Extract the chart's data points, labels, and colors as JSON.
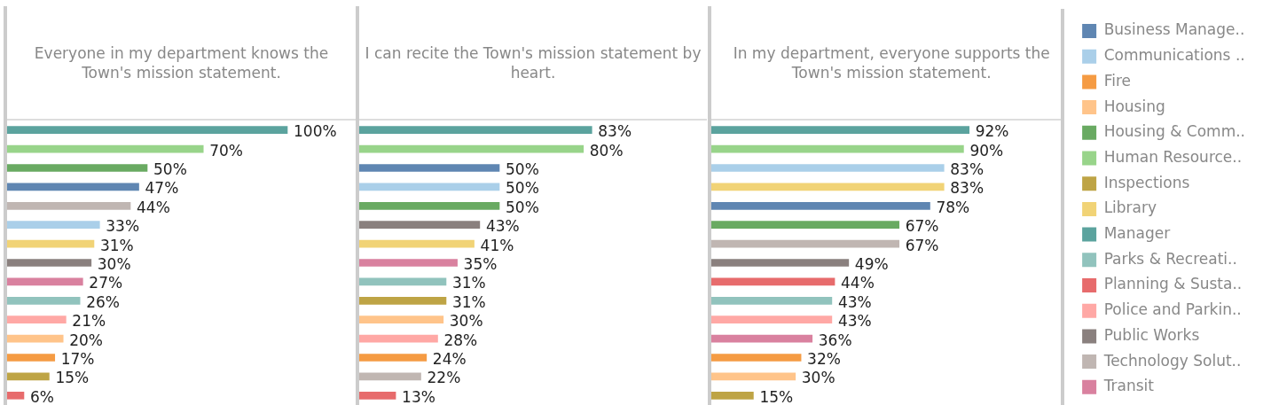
{
  "chart_data": [
    {
      "type": "bar",
      "orientation": "horizontal",
      "title": "Everyone in my department knows the Town's mission statement.",
      "tick_labels": false,
      "categories": [
        null,
        null,
        null,
        null,
        null,
        null,
        null,
        null,
        null,
        null,
        null,
        null,
        null,
        null,
        null
      ],
      "values": [
        100,
        70,
        50,
        47,
        44,
        33,
        31,
        30,
        27,
        26,
        21,
        20,
        17,
        15,
        6
      ],
      "colors": [
        "#5ba39e",
        "#98d48a",
        "#69aa62",
        "#5f86b2",
        "#c0b6b2",
        "#aacfe9",
        "#f1d376",
        "#8a807e",
        "#d9819f",
        "#91c3bd",
        "#ffa8a5",
        "#ffc48a",
        "#f59b43",
        "#bea445",
        "#e76b6c"
      ],
      "value_labels": [
        "100%",
        "70%",
        "50%",
        "47%",
        "44%",
        "33%",
        "31%",
        "30%",
        "27%",
        "26%",
        "21%",
        "20%",
        "17%",
        "15%",
        "6%"
      ]
    },
    {
      "type": "bar",
      "orientation": "horizontal",
      "title": "I can recite the Town's mission statement by heart.",
      "tick_labels": false,
      "categories": [
        null,
        null,
        null,
        null,
        null,
        null,
        null,
        null,
        null,
        null,
        null,
        null,
        null,
        null,
        null
      ],
      "values": [
        83,
        80,
        50,
        50,
        50,
        43,
        41,
        35,
        31,
        31,
        30,
        28,
        24,
        22,
        13
      ],
      "colors": [
        "#5ba39e",
        "#98d48a",
        "#5f86b2",
        "#aacfe9",
        "#69aa62",
        "#8a807e",
        "#f1d376",
        "#d9819f",
        "#91c3bd",
        "#bea445",
        "#ffc48a",
        "#ffa8a5",
        "#f59b43",
        "#c0b6b2",
        "#e76b6c"
      ],
      "value_labels": [
        "83%",
        "80%",
        "50%",
        "50%",
        "50%",
        "43%",
        "41%",
        "35%",
        "31%",
        "31%",
        "30%",
        "28%",
        "24%",
        "22%",
        "13%"
      ]
    },
    {
      "type": "bar",
      "orientation": "horizontal",
      "stacked": true,
      "legend": "right",
      "title": "In my department, everyone supports the Town's mission statement.",
      "tick_labels": false,
      "categories": [
        null,
        null,
        null,
        null,
        null,
        null,
        null,
        null,
        null,
        null,
        null,
        null,
        null,
        null,
        null
      ],
      "series": [
        {
          "name": "Business Manage..",
          "color": "#5f86b2",
          "values": [
            null,
            null,
            null,
            null,
            78,
            null,
            null,
            null,
            null,
            null,
            null,
            null,
            null,
            null,
            null
          ],
          "value_labels": [
            null,
            null,
            null,
            null,
            "78%",
            null,
            null,
            null,
            null,
            null,
            null,
            null,
            null,
            null,
            null
          ]
        },
        {
          "name": "Communications ..",
          "color": "#aacfe9",
          "values": [
            null,
            null,
            83,
            null,
            null,
            null,
            null,
            null,
            null,
            null,
            null,
            null,
            null,
            null,
            null
          ],
          "value_labels": [
            null,
            null,
            "83%",
            null,
            null,
            null,
            null,
            null,
            null,
            null,
            null,
            null,
            null,
            null,
            null
          ]
        },
        {
          "name": "Fire",
          "color": "#f59b43",
          "values": [
            null,
            null,
            null,
            null,
            null,
            null,
            null,
            null,
            null,
            null,
            null,
            null,
            32,
            null,
            null
          ],
          "value_labels": [
            null,
            null,
            null,
            null,
            null,
            null,
            null,
            null,
            null,
            null,
            null,
            null,
            "32%",
            null,
            null
          ]
        },
        {
          "name": "Housing",
          "color": "#ffc48a",
          "values": [
            null,
            null,
            null,
            null,
            null,
            null,
            null,
            null,
            null,
            null,
            null,
            null,
            null,
            30,
            null
          ],
          "value_labels": [
            null,
            null,
            null,
            null,
            null,
            null,
            null,
            null,
            null,
            null,
            null,
            null,
            null,
            "30%",
            null
          ]
        },
        {
          "name": "Housing & Comm..",
          "color": "#69aa62",
          "values": [
            null,
            null,
            null,
            null,
            null,
            67,
            null,
            null,
            null,
            null,
            null,
            null,
            null,
            null,
            null
          ],
          "value_labels": [
            null,
            null,
            null,
            null,
            null,
            "67%",
            null,
            null,
            null,
            null,
            null,
            null,
            null,
            null,
            null
          ]
        },
        {
          "name": "Human Resource..",
          "color": "#98d48a",
          "values": [
            null,
            90,
            null,
            null,
            null,
            null,
            null,
            null,
            null,
            null,
            null,
            null,
            null,
            null,
            null
          ],
          "value_labels": [
            null,
            "90%",
            null,
            null,
            null,
            null,
            null,
            null,
            null,
            null,
            null,
            null,
            null,
            null,
            null
          ]
        },
        {
          "name": "Inspections",
          "color": "#bea445",
          "values": [
            null,
            null,
            null,
            null,
            null,
            null,
            null,
            null,
            null,
            null,
            null,
            null,
            null,
            null,
            15
          ],
          "value_labels": [
            null,
            null,
            null,
            null,
            null,
            null,
            null,
            null,
            null,
            null,
            null,
            null,
            null,
            null,
            "15%"
          ]
        },
        {
          "name": "Library",
          "color": "#f1d376",
          "values": [
            null,
            null,
            null,
            83,
            null,
            null,
            null,
            null,
            null,
            null,
            null,
            null,
            null,
            null,
            null
          ],
          "value_labels": [
            null,
            null,
            null,
            "83%",
            null,
            null,
            null,
            null,
            null,
            null,
            null,
            null,
            null,
            null,
            null
          ]
        },
        {
          "name": "Manager",
          "color": "#5ba39e",
          "values": [
            92,
            null,
            null,
            null,
            null,
            null,
            null,
            null,
            null,
            null,
            null,
            null,
            null,
            null,
            null
          ],
          "value_labels": [
            "92%",
            null,
            null,
            null,
            null,
            null,
            null,
            null,
            null,
            null,
            null,
            null,
            null,
            null,
            null
          ]
        },
        {
          "name": "Parks & Recreati..",
          "color": "#91c3bd",
          "values": [
            null,
            null,
            null,
            null,
            null,
            null,
            null,
            null,
            null,
            43,
            null,
            null,
            null,
            null,
            null
          ],
          "value_labels": [
            null,
            null,
            null,
            null,
            null,
            null,
            null,
            null,
            null,
            "43%",
            null,
            null,
            null,
            null,
            null
          ]
        },
        {
          "name": "Planning & Susta..",
          "color": "#e76b6c",
          "values": [
            null,
            null,
            null,
            null,
            null,
            null,
            null,
            null,
            44,
            null,
            null,
            null,
            null,
            null,
            null
          ],
          "value_labels": [
            null,
            null,
            null,
            null,
            null,
            null,
            null,
            null,
            "44%",
            null,
            null,
            null,
            null,
            null,
            null
          ]
        },
        {
          "name": "Police and Parkin..",
          "color": "#ffa8a5",
          "values": [
            null,
            null,
            null,
            null,
            null,
            null,
            null,
            null,
            null,
            null,
            43,
            null,
            null,
            null,
            null
          ],
          "value_labels": [
            null,
            null,
            null,
            null,
            null,
            null,
            null,
            null,
            null,
            null,
            "43%",
            null,
            null,
            null,
            null
          ]
        },
        {
          "name": "Public Works",
          "color": "#8a807e",
          "values": [
            null,
            null,
            null,
            null,
            null,
            null,
            null,
            49,
            null,
            null,
            null,
            null,
            null,
            null,
            null
          ],
          "value_labels": [
            null,
            null,
            null,
            null,
            null,
            null,
            null,
            "49%",
            null,
            null,
            null,
            null,
            null,
            null,
            null
          ]
        },
        {
          "name": "Technology Solut..",
          "color": "#c0b6b2",
          "values": [
            null,
            null,
            null,
            null,
            null,
            null,
            67,
            null,
            null,
            null,
            null,
            null,
            null,
            null,
            null
          ],
          "value_labels": [
            null,
            null,
            null,
            null,
            null,
            null,
            "67%",
            null,
            null,
            null,
            null,
            null,
            null,
            null,
            null
          ]
        },
        {
          "name": "Transit",
          "color": "#d9819f",
          "values": [
            null,
            null,
            null,
            null,
            null,
            null,
            null,
            null,
            null,
            null,
            null,
            36,
            null,
            null,
            null
          ],
          "value_labels": [
            null,
            null,
            null,
            null,
            null,
            null,
            null,
            null,
            null,
            null,
            null,
            "36%",
            null,
            null,
            null
          ]
        }
      ]
    }
  ]
}
